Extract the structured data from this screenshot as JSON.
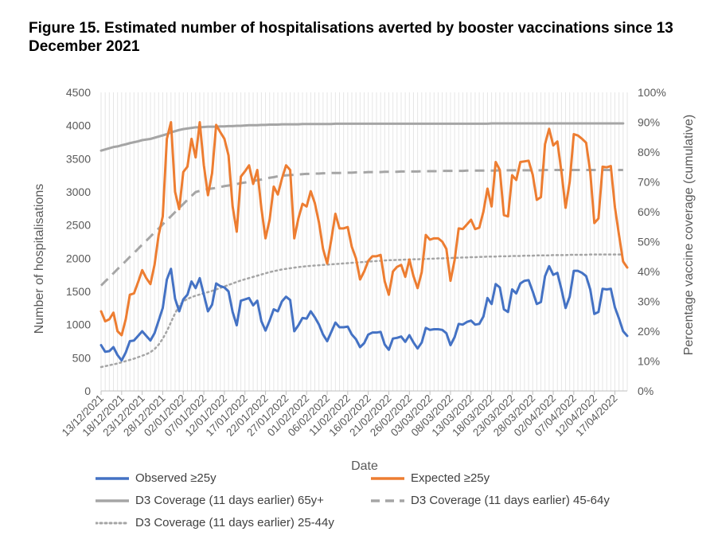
{
  "figure_title": "Figure 15. Estimated number of hospitalisations averted by booster vaccinations since 13 December 2021",
  "chart_data": {
    "type": "line",
    "xlabel": "Date",
    "ylabel": "Number of hospitalisations",
    "y2label": "Percentage vaccine coverage (cumulative)",
    "ylim": [
      0,
      4500
    ],
    "y_ticks": [
      "0",
      "500",
      "1000",
      "1500",
      "2000",
      "2500",
      "3000",
      "3500",
      "4000",
      "4500"
    ],
    "y2lim": [
      0,
      100
    ],
    "y2_ticks": [
      "0%",
      "10%",
      "20%",
      "30%",
      "40%",
      "50%",
      "60%",
      "70%",
      "80%",
      "90%",
      "100%"
    ],
    "x_tick_labels": [
      "13/12/2021",
      "18/12/2021",
      "23/12/2021",
      "28/12/2021",
      "02/01/2022",
      "07/01/2022",
      "12/01/2022",
      "17/01/2022",
      "22/01/2022",
      "27/01/2022",
      "01/02/2022",
      "06/02/2022",
      "11/02/2022",
      "16/02/2022",
      "21/02/2022",
      "26/02/2022",
      "03/03/2022",
      "08/03/2022",
      "13/03/2022",
      "18/03/2022",
      "23/03/2022",
      "28/03/2022",
      "02/04/2022",
      "07/04/2022",
      "12/04/2022",
      "17/04/2022"
    ],
    "x_start": "13/12/2021",
    "x_end": "19/04/2022",
    "grid": "vertical",
    "legend_position": "bottom",
    "series": [
      {
        "name": "Observed ≥25y",
        "axis": "left",
        "color": "#4472c4",
        "style": "solid",
        "values": [
          690,
          590,
          600,
          660,
          540,
          460,
          580,
          750,
          760,
          830,
          900,
          830,
          760,
          870,
          1060,
          1250,
          1680,
          1840,
          1390,
          1200,
          1380,
          1450,
          1650,
          1550,
          1700,
          1450,
          1200,
          1300,
          1620,
          1580,
          1560,
          1500,
          1190,
          990,
          1360,
          1380,
          1400,
          1290,
          1360,
          1050,
          910,
          1060,
          1230,
          1200,
          1350,
          1420,
          1370,
          900,
          990,
          1100,
          1090,
          1200,
          1110,
          1000,
          850,
          750,
          890,
          1030,
          960,
          960,
          970,
          850,
          780,
          660,
          720,
          850,
          880,
          880,
          890,
          700,
          620,
          790,
          800,
          820,
          740,
          840,
          730,
          640,
          730,
          950,
          920,
          930,
          930,
          920,
          870,
          690,
          810,
          1010,
          1000,
          1040,
          1060,
          1000,
          1010,
          1120,
          1400,
          1310,
          1610,
          1560,
          1230,
          1190,
          1530,
          1470,
          1620,
          1660,
          1670,
          1500,
          1310,
          1340,
          1730,
          1880,
          1750,
          1780,
          1530,
          1250,
          1420,
          1810,
          1810,
          1780,
          1730,
          1530,
          1160,
          1190,
          1540,
          1530,
          1540,
          1260,
          1090,
          900,
          830
        ]
      },
      {
        "name": "Expected ≥25y",
        "axis": "left",
        "color": "#ed7d31",
        "style": "solid",
        "values": [
          1200,
          1050,
          1080,
          1180,
          900,
          840,
          1080,
          1450,
          1470,
          1640,
          1820,
          1700,
          1610,
          1900,
          2350,
          2630,
          3800,
          4050,
          3000,
          2740,
          3300,
          3380,
          3800,
          3520,
          4050,
          3400,
          2950,
          3280,
          4010,
          3900,
          3800,
          3550,
          2780,
          2400,
          3230,
          3310,
          3400,
          3120,
          3330,
          2750,
          2300,
          2580,
          3080,
          2960,
          3200,
          3400,
          3330,
          2300,
          2600,
          2820,
          2780,
          3010,
          2830,
          2540,
          2140,
          1920,
          2280,
          2670,
          2450,
          2450,
          2470,
          2170,
          2000,
          1680,
          1800,
          1960,
          2030,
          2030,
          2050,
          1650,
          1450,
          1800,
          1870,
          1900,
          1720,
          1980,
          1730,
          1550,
          1790,
          2350,
          2280,
          2300,
          2300,
          2250,
          2140,
          1660,
          1970,
          2450,
          2440,
          2510,
          2580,
          2440,
          2460,
          2700,
          3050,
          2780,
          3450,
          3330,
          2650,
          2630,
          3250,
          3180,
          3450,
          3460,
          3470,
          3260,
          2880,
          2920,
          3720,
          3950,
          3700,
          3760,
          3300,
          2760,
          3150,
          3870,
          3850,
          3800,
          3740,
          3300,
          2530,
          2600,
          3380,
          3370,
          3390,
          2770,
          2350,
          1950,
          1860
        ]
      },
      {
        "name": "D3 Coverage (11 days earlier) 65y+",
        "axis": "right",
        "color": "#a5a5a5",
        "style": "solid",
        "values": [
          80.5,
          80.9,
          81.3,
          81.7,
          81.9,
          82.3,
          82.6,
          83.0,
          83.3,
          83.6,
          84.0,
          84.2,
          84.4,
          84.8,
          85.2,
          85.6,
          86.0,
          86.6,
          87.0,
          87.4,
          87.7,
          87.9,
          88.1,
          88.3,
          88.3,
          88.4,
          88.5,
          88.5,
          88.5,
          88.6,
          88.6,
          88.7,
          88.7,
          88.8,
          88.8,
          88.9,
          89.0,
          89.0,
          89.0,
          89.1,
          89.1,
          89.2,
          89.2,
          89.2,
          89.3,
          89.3,
          89.3,
          89.3,
          89.3,
          89.4,
          89.4,
          89.4,
          89.4,
          89.4,
          89.4,
          89.4,
          89.4,
          89.5,
          89.5,
          89.5,
          89.5,
          89.5,
          89.5,
          89.5,
          89.5,
          89.5,
          89.5,
          89.5,
          89.5,
          89.5,
          89.5,
          89.5,
          89.5,
          89.5,
          89.5,
          89.5,
          89.5,
          89.5,
          89.5,
          89.5,
          89.5,
          89.5,
          89.5,
          89.5,
          89.5,
          89.5,
          89.5,
          89.5,
          89.5,
          89.5,
          89.5,
          89.5,
          89.5,
          89.5,
          89.5,
          89.6,
          89.6,
          89.6,
          89.6,
          89.6,
          89.6,
          89.6,
          89.6,
          89.6,
          89.6,
          89.6,
          89.6,
          89.6,
          89.6,
          89.6,
          89.6,
          89.6,
          89.6,
          89.6,
          89.6,
          89.6,
          89.6,
          89.6,
          89.6,
          89.6,
          89.6,
          89.6,
          89.6,
          89.6,
          89.6,
          89.6,
          89.6,
          89.6
        ]
      },
      {
        "name": "D3 Coverage (11 days earlier) 45-64y",
        "axis": "right",
        "color": "#a5a5a5",
        "style": "dashed",
        "values": [
          35.3,
          36.7,
          38.0,
          39.4,
          40.8,
          42.1,
          43.5,
          44.9,
          46.2,
          47.6,
          49.0,
          50.3,
          51.7,
          53.1,
          54.4,
          55.8,
          57.2,
          58.5,
          59.9,
          61.3,
          62.6,
          64.0,
          65.3,
          66.6,
          67.0,
          67.3,
          67.6,
          67.8,
          68.0,
          68.3,
          68.6,
          68.8,
          69.1,
          69.3,
          69.6,
          69.8,
          70.1,
          70.3,
          70.6,
          70.8,
          71.1,
          71.4,
          71.6,
          71.9,
          72.1,
          72.2,
          72.3,
          72.4,
          72.5,
          72.6,
          72.7,
          72.7,
          72.8,
          72.8,
          72.9,
          72.9,
          73.0,
          73.0,
          73.0,
          73.1,
          73.1,
          73.1,
          73.2,
          73.2,
          73.2,
          73.3,
          73.3,
          73.3,
          73.3,
          73.4,
          73.4,
          73.4,
          73.4,
          73.5,
          73.5,
          73.5,
          73.5,
          73.5,
          73.6,
          73.6,
          73.6,
          73.6,
          73.6,
          73.7,
          73.7,
          73.7,
          73.7,
          73.7,
          73.7,
          73.8,
          73.8,
          73.8,
          73.8,
          73.8,
          73.8,
          73.8,
          73.8,
          73.9,
          73.9,
          73.9,
          73.9,
          73.9,
          73.9,
          73.9,
          73.9,
          73.9,
          73.9,
          73.9,
          74.0,
          74.0,
          74.0,
          74.0,
          74.0,
          74.0,
          74.0,
          74.0,
          74.0,
          74.0,
          74.0,
          74.0,
          74.0,
          74.0,
          74.0,
          74.0,
          74.0,
          74.0,
          74.0,
          74.0
        ]
      },
      {
        "name": "D3 Coverage (11 days earlier) 25-44y",
        "axis": "right",
        "color": "#a5a5a5",
        "style": "dotted",
        "values": [
          8.0,
          8.3,
          8.6,
          8.9,
          9.2,
          9.6,
          10.0,
          10.4,
          10.8,
          11.3,
          11.8,
          12.3,
          13.0,
          14.0,
          15.5,
          17.5,
          20.0,
          23.0,
          26.0,
          28.5,
          30.0,
          30.8,
          31.4,
          31.9,
          32.3,
          32.7,
          33.1,
          33.5,
          34.0,
          34.5,
          35.0,
          35.5,
          36.0,
          36.5,
          37.0,
          37.4,
          37.8,
          38.2,
          38.6,
          39.0,
          39.4,
          39.8,
          40.1,
          40.4,
          40.7,
          40.9,
          41.1,
          41.3,
          41.5,
          41.6,
          41.8,
          41.9,
          42.0,
          42.1,
          42.2,
          42.3,
          42.4,
          42.5,
          42.6,
          42.7,
          42.8,
          42.9,
          43.0,
          43.1,
          43.2,
          43.3,
          43.4,
          43.5,
          43.6,
          43.7,
          43.8,
          43.8,
          43.9,
          43.9,
          44.0,
          44.0,
          44.1,
          44.1,
          44.2,
          44.2,
          44.3,
          44.3,
          44.4,
          44.4,
          44.5,
          44.5,
          44.6,
          44.6,
          44.7,
          44.7,
          44.8,
          44.8,
          44.9,
          44.9,
          45.0,
          45.0,
          45.0,
          45.1,
          45.1,
          45.1,
          45.2,
          45.2,
          45.2,
          45.3,
          45.3,
          45.3,
          45.4,
          45.4,
          45.4,
          45.4,
          45.5,
          45.5,
          45.5,
          45.5,
          45.6,
          45.6,
          45.6,
          45.6,
          45.6,
          45.7,
          45.7,
          45.7,
          45.7,
          45.7,
          45.7,
          45.7,
          45.7,
          45.7
        ]
      }
    ]
  }
}
